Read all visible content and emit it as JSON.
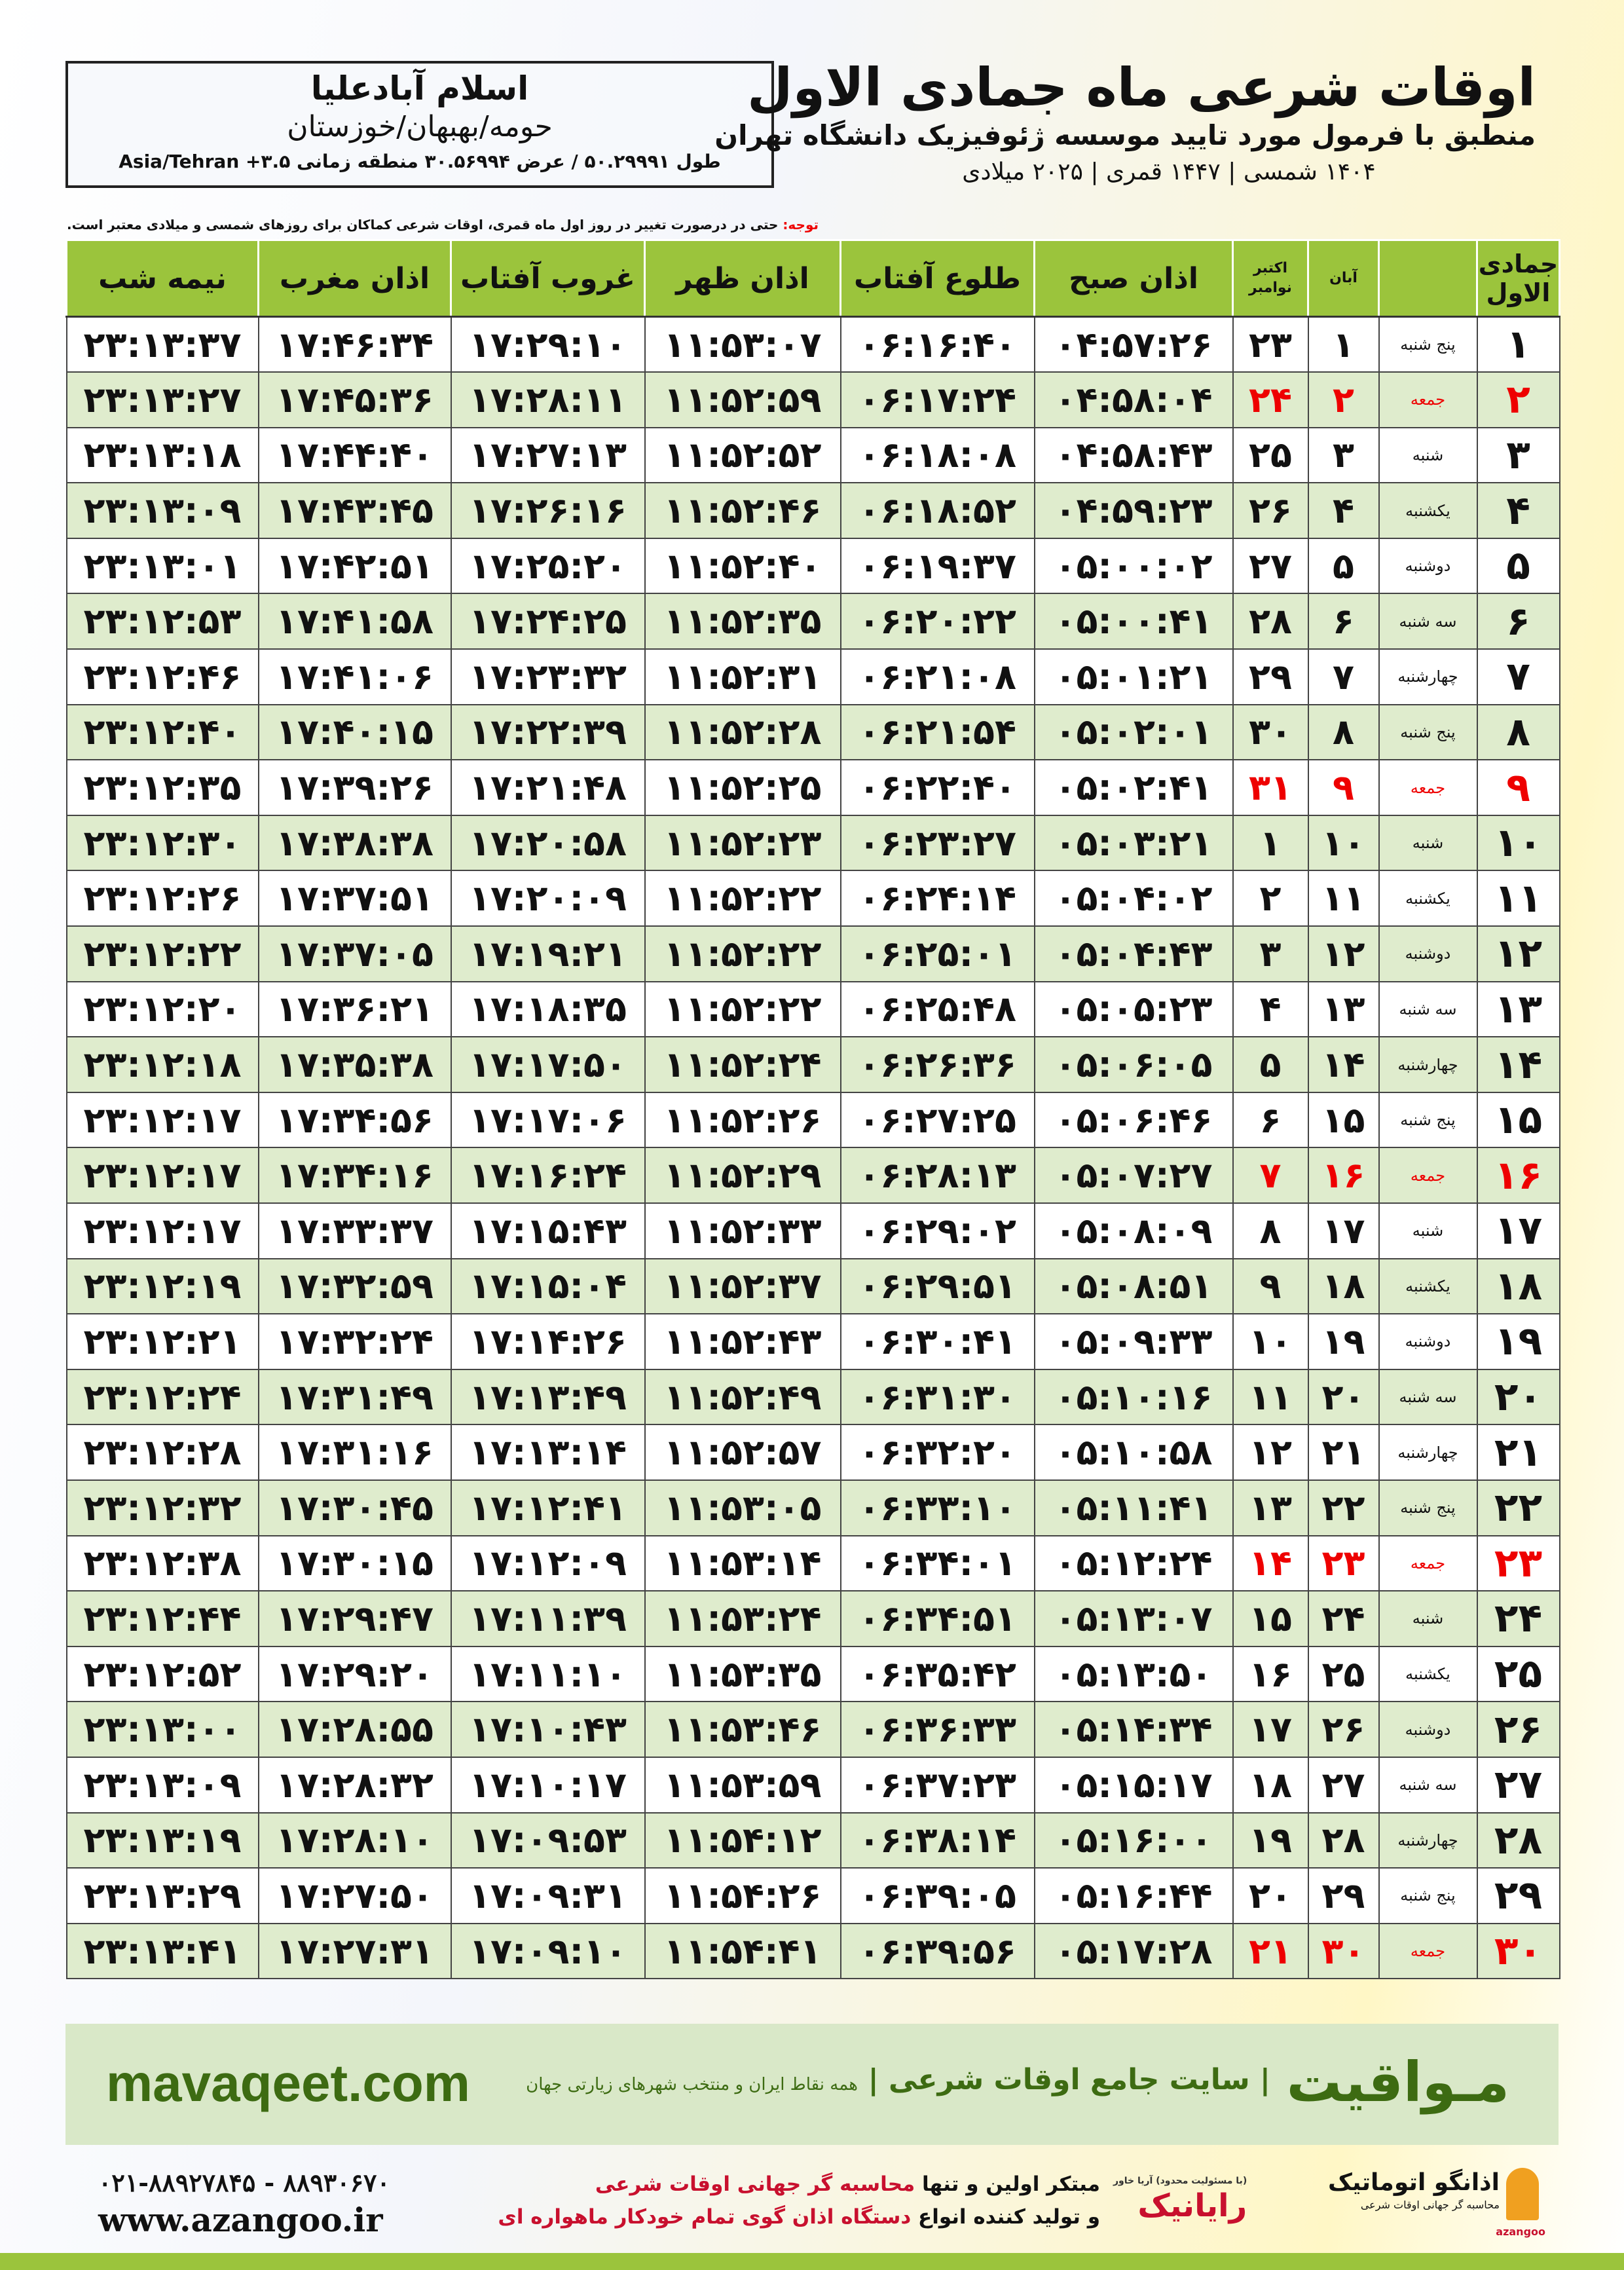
{
  "info": {
    "city": "اسلام آبادعلیا",
    "region": "حومه/بهبهان/خوزستان",
    "coords": "طول ۵۰.۲۹۹۹۱ / عرض ۳۰.۵۶۹۹۴ منطقه زمانی ۳.۵+ Asia/Tehran"
  },
  "title": {
    "main": "اوقات شرعی ماه جمادی الاول",
    "subtitle": "منطبق با فرمول مورد تایید موسسه ژئوفیزیک دانشگاه تهران",
    "dates": "۱۴۰۴ شمسی | ۱۴۴۷ قمری | ۲۰۲۵ میلادی"
  },
  "note": {
    "label": "توجه:",
    "text": " حتی در درصورت تغییر در روز اول ماه قمری، اوقات شرعی کماکان برای روزهای شمسی و میلادی معتبر است."
  },
  "table": {
    "headers": {
      "day": "جمادی الاول",
      "weekday": "",
      "aban": "آبان",
      "miladi": "اکتبر نوامبر",
      "sobh": "اذان صبح",
      "tolu": "طلوع آفتاب",
      "zohr": "اذان ظهر",
      "ghurub": "غروب آفتاب",
      "maghrib": "اذان مغرب",
      "nime": "نیمه شب"
    },
    "friday_color": "#ee0000",
    "rows": [
      [
        "۱",
        "پنج شنبه",
        "۱",
        "۲۳",
        "۰۴:۵۷:۲۶",
        "۰۶:۱۶:۴۰",
        "۱۱:۵۳:۰۷",
        "۱۷:۲۹:۱۰",
        "۱۷:۴۶:۳۴",
        "۲۳:۱۳:۳۷"
      ],
      [
        "۲",
        "جمعه",
        "۲",
        "۲۴",
        "۰۴:۵۸:۰۴",
        "۰۶:۱۷:۲۴",
        "۱۱:۵۲:۵۹",
        "۱۷:۲۸:۱۱",
        "۱۷:۴۵:۳۶",
        "۲۳:۱۳:۲۷"
      ],
      [
        "۳",
        "شنبه",
        "۳",
        "۲۵",
        "۰۴:۵۸:۴۳",
        "۰۶:۱۸:۰۸",
        "۱۱:۵۲:۵۲",
        "۱۷:۲۷:۱۳",
        "۱۷:۴۴:۴۰",
        "۲۳:۱۳:۱۸"
      ],
      [
        "۴",
        "یکشنبه",
        "۴",
        "۲۶",
        "۰۴:۵۹:۲۳",
        "۰۶:۱۸:۵۲",
        "۱۱:۵۲:۴۶",
        "۱۷:۲۶:۱۶",
        "۱۷:۴۳:۴۵",
        "۲۳:۱۳:۰۹"
      ],
      [
        "۵",
        "دوشنبه",
        "۵",
        "۲۷",
        "۰۵:۰۰:۰۲",
        "۰۶:۱۹:۳۷",
        "۱۱:۵۲:۴۰",
        "۱۷:۲۵:۲۰",
        "۱۷:۴۲:۵۱",
        "۲۳:۱۳:۰۱"
      ],
      [
        "۶",
        "سه شنبه",
        "۶",
        "۲۸",
        "۰۵:۰۰:۴۱",
        "۰۶:۲۰:۲۲",
        "۱۱:۵۲:۳۵",
        "۱۷:۲۴:۲۵",
        "۱۷:۴۱:۵۸",
        "۲۳:۱۲:۵۳"
      ],
      [
        "۷",
        "چهارشنبه",
        "۷",
        "۲۹",
        "۰۵:۰۱:۲۱",
        "۰۶:۲۱:۰۸",
        "۱۱:۵۲:۳۱",
        "۱۷:۲۳:۳۲",
        "۱۷:۴۱:۰۶",
        "۲۳:۱۲:۴۶"
      ],
      [
        "۸",
        "پنج شنبه",
        "۸",
        "۳۰",
        "۰۵:۰۲:۰۱",
        "۰۶:۲۱:۵۴",
        "۱۱:۵۲:۲۸",
        "۱۷:۲۲:۳۹",
        "۱۷:۴۰:۱۵",
        "۲۳:۱۲:۴۰"
      ],
      [
        "۹",
        "جمعه",
        "۹",
        "۳۱",
        "۰۵:۰۲:۴۱",
        "۰۶:۲۲:۴۰",
        "۱۱:۵۲:۲۵",
        "۱۷:۲۱:۴۸",
        "۱۷:۳۹:۲۶",
        "۲۳:۱۲:۳۵"
      ],
      [
        "۱۰",
        "شنبه",
        "۱۰",
        "۱",
        "۰۵:۰۳:۲۱",
        "۰۶:۲۳:۲۷",
        "۱۱:۵۲:۲۳",
        "۱۷:۲۰:۵۸",
        "۱۷:۳۸:۳۸",
        "۲۳:۱۲:۳۰"
      ],
      [
        "۱۱",
        "یکشنبه",
        "۱۱",
        "۲",
        "۰۵:۰۴:۰۲",
        "۰۶:۲۴:۱۴",
        "۱۱:۵۲:۲۲",
        "۱۷:۲۰:۰۹",
        "۱۷:۳۷:۵۱",
        "۲۳:۱۲:۲۶"
      ],
      [
        "۱۲",
        "دوشنبه",
        "۱۲",
        "۳",
        "۰۵:۰۴:۴۳",
        "۰۶:۲۵:۰۱",
        "۱۱:۵۲:۲۲",
        "۱۷:۱۹:۲۱",
        "۱۷:۳۷:۰۵",
        "۲۳:۱۲:۲۲"
      ],
      [
        "۱۳",
        "سه شنبه",
        "۱۳",
        "۴",
        "۰۵:۰۵:۲۳",
        "۰۶:۲۵:۴۸",
        "۱۱:۵۲:۲۲",
        "۱۷:۱۸:۳۵",
        "۱۷:۳۶:۲۱",
        "۲۳:۱۲:۲۰"
      ],
      [
        "۱۴",
        "چهارشنبه",
        "۱۴",
        "۵",
        "۰۵:۰۶:۰۵",
        "۰۶:۲۶:۳۶",
        "۱۱:۵۲:۲۴",
        "۱۷:۱۷:۵۰",
        "۱۷:۳۵:۳۸",
        "۲۳:۱۲:۱۸"
      ],
      [
        "۱۵",
        "پنج شنبه",
        "۱۵",
        "۶",
        "۰۵:۰۶:۴۶",
        "۰۶:۲۷:۲۵",
        "۱۱:۵۲:۲۶",
        "۱۷:۱۷:۰۶",
        "۱۷:۳۴:۵۶",
        "۲۳:۱۲:۱۷"
      ],
      [
        "۱۶",
        "جمعه",
        "۱۶",
        "۷",
        "۰۵:۰۷:۲۷",
        "۰۶:۲۸:۱۳",
        "۱۱:۵۲:۲۹",
        "۱۷:۱۶:۲۴",
        "۱۷:۳۴:۱۶",
        "۲۳:۱۲:۱۷"
      ],
      [
        "۱۷",
        "شنبه",
        "۱۷",
        "۸",
        "۰۵:۰۸:۰۹",
        "۰۶:۲۹:۰۲",
        "۱۱:۵۲:۳۳",
        "۱۷:۱۵:۴۳",
        "۱۷:۳۳:۳۷",
        "۲۳:۱۲:۱۷"
      ],
      [
        "۱۸",
        "یکشنبه",
        "۱۸",
        "۹",
        "۰۵:۰۸:۵۱",
        "۰۶:۲۹:۵۱",
        "۱۱:۵۲:۳۷",
        "۱۷:۱۵:۰۴",
        "۱۷:۳۲:۵۹",
        "۲۳:۱۲:۱۹"
      ],
      [
        "۱۹",
        "دوشنبه",
        "۱۹",
        "۱۰",
        "۰۵:۰۹:۳۳",
        "۰۶:۳۰:۴۱",
        "۱۱:۵۲:۴۳",
        "۱۷:۱۴:۲۶",
        "۱۷:۳۲:۲۴",
        "۲۳:۱۲:۲۱"
      ],
      [
        "۲۰",
        "سه شنبه",
        "۲۰",
        "۱۱",
        "۰۵:۱۰:۱۶",
        "۰۶:۳۱:۳۰",
        "۱۱:۵۲:۴۹",
        "۱۷:۱۳:۴۹",
        "۱۷:۳۱:۴۹",
        "۲۳:۱۲:۲۴"
      ],
      [
        "۲۱",
        "چهارشنبه",
        "۲۱",
        "۱۲",
        "۰۵:۱۰:۵۸",
        "۰۶:۳۲:۲۰",
        "۱۱:۵۲:۵۷",
        "۱۷:۱۳:۱۴",
        "۱۷:۳۱:۱۶",
        "۲۳:۱۲:۲۸"
      ],
      [
        "۲۲",
        "پنج شنبه",
        "۲۲",
        "۱۳",
        "۰۵:۱۱:۴۱",
        "۰۶:۳۳:۱۰",
        "۱۱:۵۳:۰۵",
        "۱۷:۱۲:۴۱",
        "۱۷:۳۰:۴۵",
        "۲۳:۱۲:۳۲"
      ],
      [
        "۲۳",
        "جمعه",
        "۲۳",
        "۱۴",
        "۰۵:۱۲:۲۴",
        "۰۶:۳۴:۰۱",
        "۱۱:۵۳:۱۴",
        "۱۷:۱۲:۰۹",
        "۱۷:۳۰:۱۵",
        "۲۳:۱۲:۳۸"
      ],
      [
        "۲۴",
        "شنبه",
        "۲۴",
        "۱۵",
        "۰۵:۱۳:۰۷",
        "۰۶:۳۴:۵۱",
        "۱۱:۵۳:۲۴",
        "۱۷:۱۱:۳۹",
        "۱۷:۲۹:۴۷",
        "۲۳:۱۲:۴۴"
      ],
      [
        "۲۵",
        "یکشنبه",
        "۲۵",
        "۱۶",
        "۰۵:۱۳:۵۰",
        "۰۶:۳۵:۴۲",
        "۱۱:۵۳:۳۵",
        "۱۷:۱۱:۱۰",
        "۱۷:۲۹:۲۰",
        "۲۳:۱۲:۵۲"
      ],
      [
        "۲۶",
        "دوشنبه",
        "۲۶",
        "۱۷",
        "۰۵:۱۴:۳۴",
        "۰۶:۳۶:۳۳",
        "۱۱:۵۳:۴۶",
        "۱۷:۱۰:۴۳",
        "۱۷:۲۸:۵۵",
        "۲۳:۱۳:۰۰"
      ],
      [
        "۲۷",
        "سه شنبه",
        "۲۷",
        "۱۸",
        "۰۵:۱۵:۱۷",
        "۰۶:۳۷:۲۳",
        "۱۱:۵۳:۵۹",
        "۱۷:۱۰:۱۷",
        "۱۷:۲۸:۳۲",
        "۲۳:۱۳:۰۹"
      ],
      [
        "۲۸",
        "چهارشنبه",
        "۲۸",
        "۱۹",
        "۰۵:۱۶:۰۰",
        "۰۶:۳۸:۱۴",
        "۱۱:۵۴:۱۲",
        "۱۷:۰۹:۵۳",
        "۱۷:۲۸:۱۰",
        "۲۳:۱۳:۱۹"
      ],
      [
        "۲۹",
        "پنج شنبه",
        "۲۹",
        "۲۰",
        "۰۵:۱۶:۴۴",
        "۰۶:۳۹:۰۵",
        "۱۱:۵۴:۲۶",
        "۱۷:۰۹:۳۱",
        "۱۷:۲۷:۵۰",
        "۲۳:۱۳:۲۹"
      ],
      [
        "۳۰",
        "جمعه",
        "۳۰",
        "۲۱",
        "۰۵:۱۷:۲۸",
        "۰۶:۳۹:۵۶",
        "۱۱:۵۴:۴۱",
        "۱۷:۰۹:۱۰",
        "۱۷:۲۷:۳۱",
        "۲۳:۱۳:۴۱"
      ]
    ]
  },
  "banner": {
    "brand": "مـواقیت",
    "slogan": "| سایت جامع اوقات شرعی |",
    "slogan2": "همه نقاط ایران و منتخب شهرهای زیارتی جهان",
    "site": "mavaqeet.com",
    "bg": "#d9e8c8",
    "text_color": "#3d6b12"
  },
  "footer": {
    "phones": "۰۲۱-۸۸۹۲۷۸۴۵ - ۸۸۹۳۰۶۷۰",
    "web": "www.azangoo.ir",
    "ad_line1_a": "مبتکر اولین و تنها ",
    "ad_line1_b": "محاسبه گر جهانی اوقات شرعی",
    "ad_line2_a": "و تولید کننده انواع ",
    "ad_line2_b": "دستگاه اذان گوی تمام خودکار ماهواره ای",
    "logo_rayanik": "رایانیک",
    "logo_rayanik_small": "(با مسئولیت محدود) آریا خاور",
    "logo_azangoo": "اذانگو اتوماتیک",
    "logo_azangoo_sub": "محاسبه گر جهانی اوقات شرعی",
    "logo_azangoo_latin": "azangoo"
  }
}
